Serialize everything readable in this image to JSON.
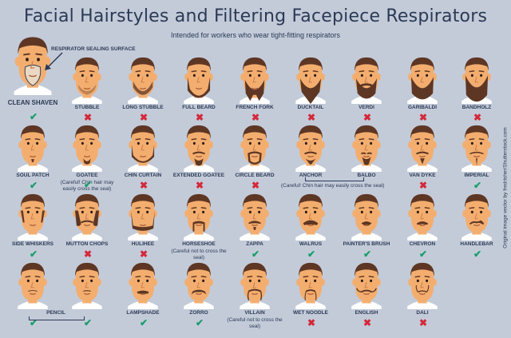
{
  "header": {
    "title": "Facial Hairstyles and Filtering Facepiece Respirators",
    "subtitle": "Intended for workers who wear tight-fitting respirators"
  },
  "credit": "Original image vector by fredrisher/Shutterstock.com",
  "annotation": "RESPIRATOR SEALING SURFACE",
  "colors": {
    "skin": "#f3ae6f",
    "hair": "#5e3624",
    "seal": "#ead8c4",
    "shirt": "#ffffff",
    "ok": "#1a9e6b",
    "no": "#d4283a",
    "text": "#2b3a55",
    "background": "#c3cbd9"
  },
  "styles": [
    {
      "name": "CLEAN SHAVEN",
      "ok": true,
      "note": ""
    },
    {
      "name": "STUBBLE",
      "ok": false,
      "note": ""
    },
    {
      "name": "LONG STUBBLE",
      "ok": false,
      "note": ""
    },
    {
      "name": "FULL BEARD",
      "ok": false,
      "note": ""
    },
    {
      "name": "FRENCH FORK",
      "ok": false,
      "note": ""
    },
    {
      "name": "DUCKTAIL",
      "ok": false,
      "note": ""
    },
    {
      "name": "VERDI",
      "ok": false,
      "note": ""
    },
    {
      "name": "GARIBALDI",
      "ok": false,
      "note": ""
    },
    {
      "name": "BANDHOLZ",
      "ok": false,
      "note": ""
    },
    {
      "name": "SOUL PATCH",
      "ok": true,
      "note": ""
    },
    {
      "name": "GOATEE",
      "ok": true,
      "note": "(Careful! Chin hair may easily cross the seal)"
    },
    {
      "name": "CHIN CURTAIN",
      "ok": false,
      "note": ""
    },
    {
      "name": "EXTENDED GOATEE",
      "ok": false,
      "note": ""
    },
    {
      "name": "CIRCLE BEARD",
      "ok": false,
      "note": ""
    },
    {
      "name": "ANCHOR",
      "ok": null,
      "note": ""
    },
    {
      "name": "BALBO",
      "ok": null,
      "note": ""
    },
    {
      "name": "VAN DYKE",
      "ok": false,
      "note": ""
    },
    {
      "name": "IMPERIAL",
      "ok": true,
      "note": ""
    },
    {
      "name": "SIDE WHISKERS",
      "ok": true,
      "note": ""
    },
    {
      "name": "MUTTON CHOPS",
      "ok": false,
      "note": ""
    },
    {
      "name": "HULIHEE",
      "ok": false,
      "note": ""
    },
    {
      "name": "HORSESHOE",
      "ok": null,
      "note": "(Careful not to cross the seal)"
    },
    {
      "name": "ZAPPA",
      "ok": true,
      "note": ""
    },
    {
      "name": "WALRUS",
      "ok": true,
      "note": ""
    },
    {
      "name": "PAINTER'S BRUSH",
      "ok": true,
      "note": ""
    },
    {
      "name": "CHEVRON",
      "ok": true,
      "note": ""
    },
    {
      "name": "HANDLEBAR",
      "ok": true,
      "note": ""
    },
    {
      "name": "",
      "ok": true,
      "note": ""
    },
    {
      "name": "",
      "ok": true,
      "note": ""
    },
    {
      "name": "LAMPSHADE",
      "ok": true,
      "note": ""
    },
    {
      "name": "ZORRO",
      "ok": true,
      "note": ""
    },
    {
      "name": "VILLAIN",
      "ok": null,
      "note": "(Careful not to cross the seal)"
    },
    {
      "name": "WET NOODLE",
      "ok": false,
      "note": ""
    },
    {
      "name": "ENGLISH",
      "ok": false,
      "note": ""
    },
    {
      "name": "DALI",
      "ok": false,
      "note": ""
    }
  ],
  "groups": {
    "anchor_balbo_note": "(Careful! Chin hair may easily cross the seal)",
    "pencil_label": "PENCIL"
  }
}
